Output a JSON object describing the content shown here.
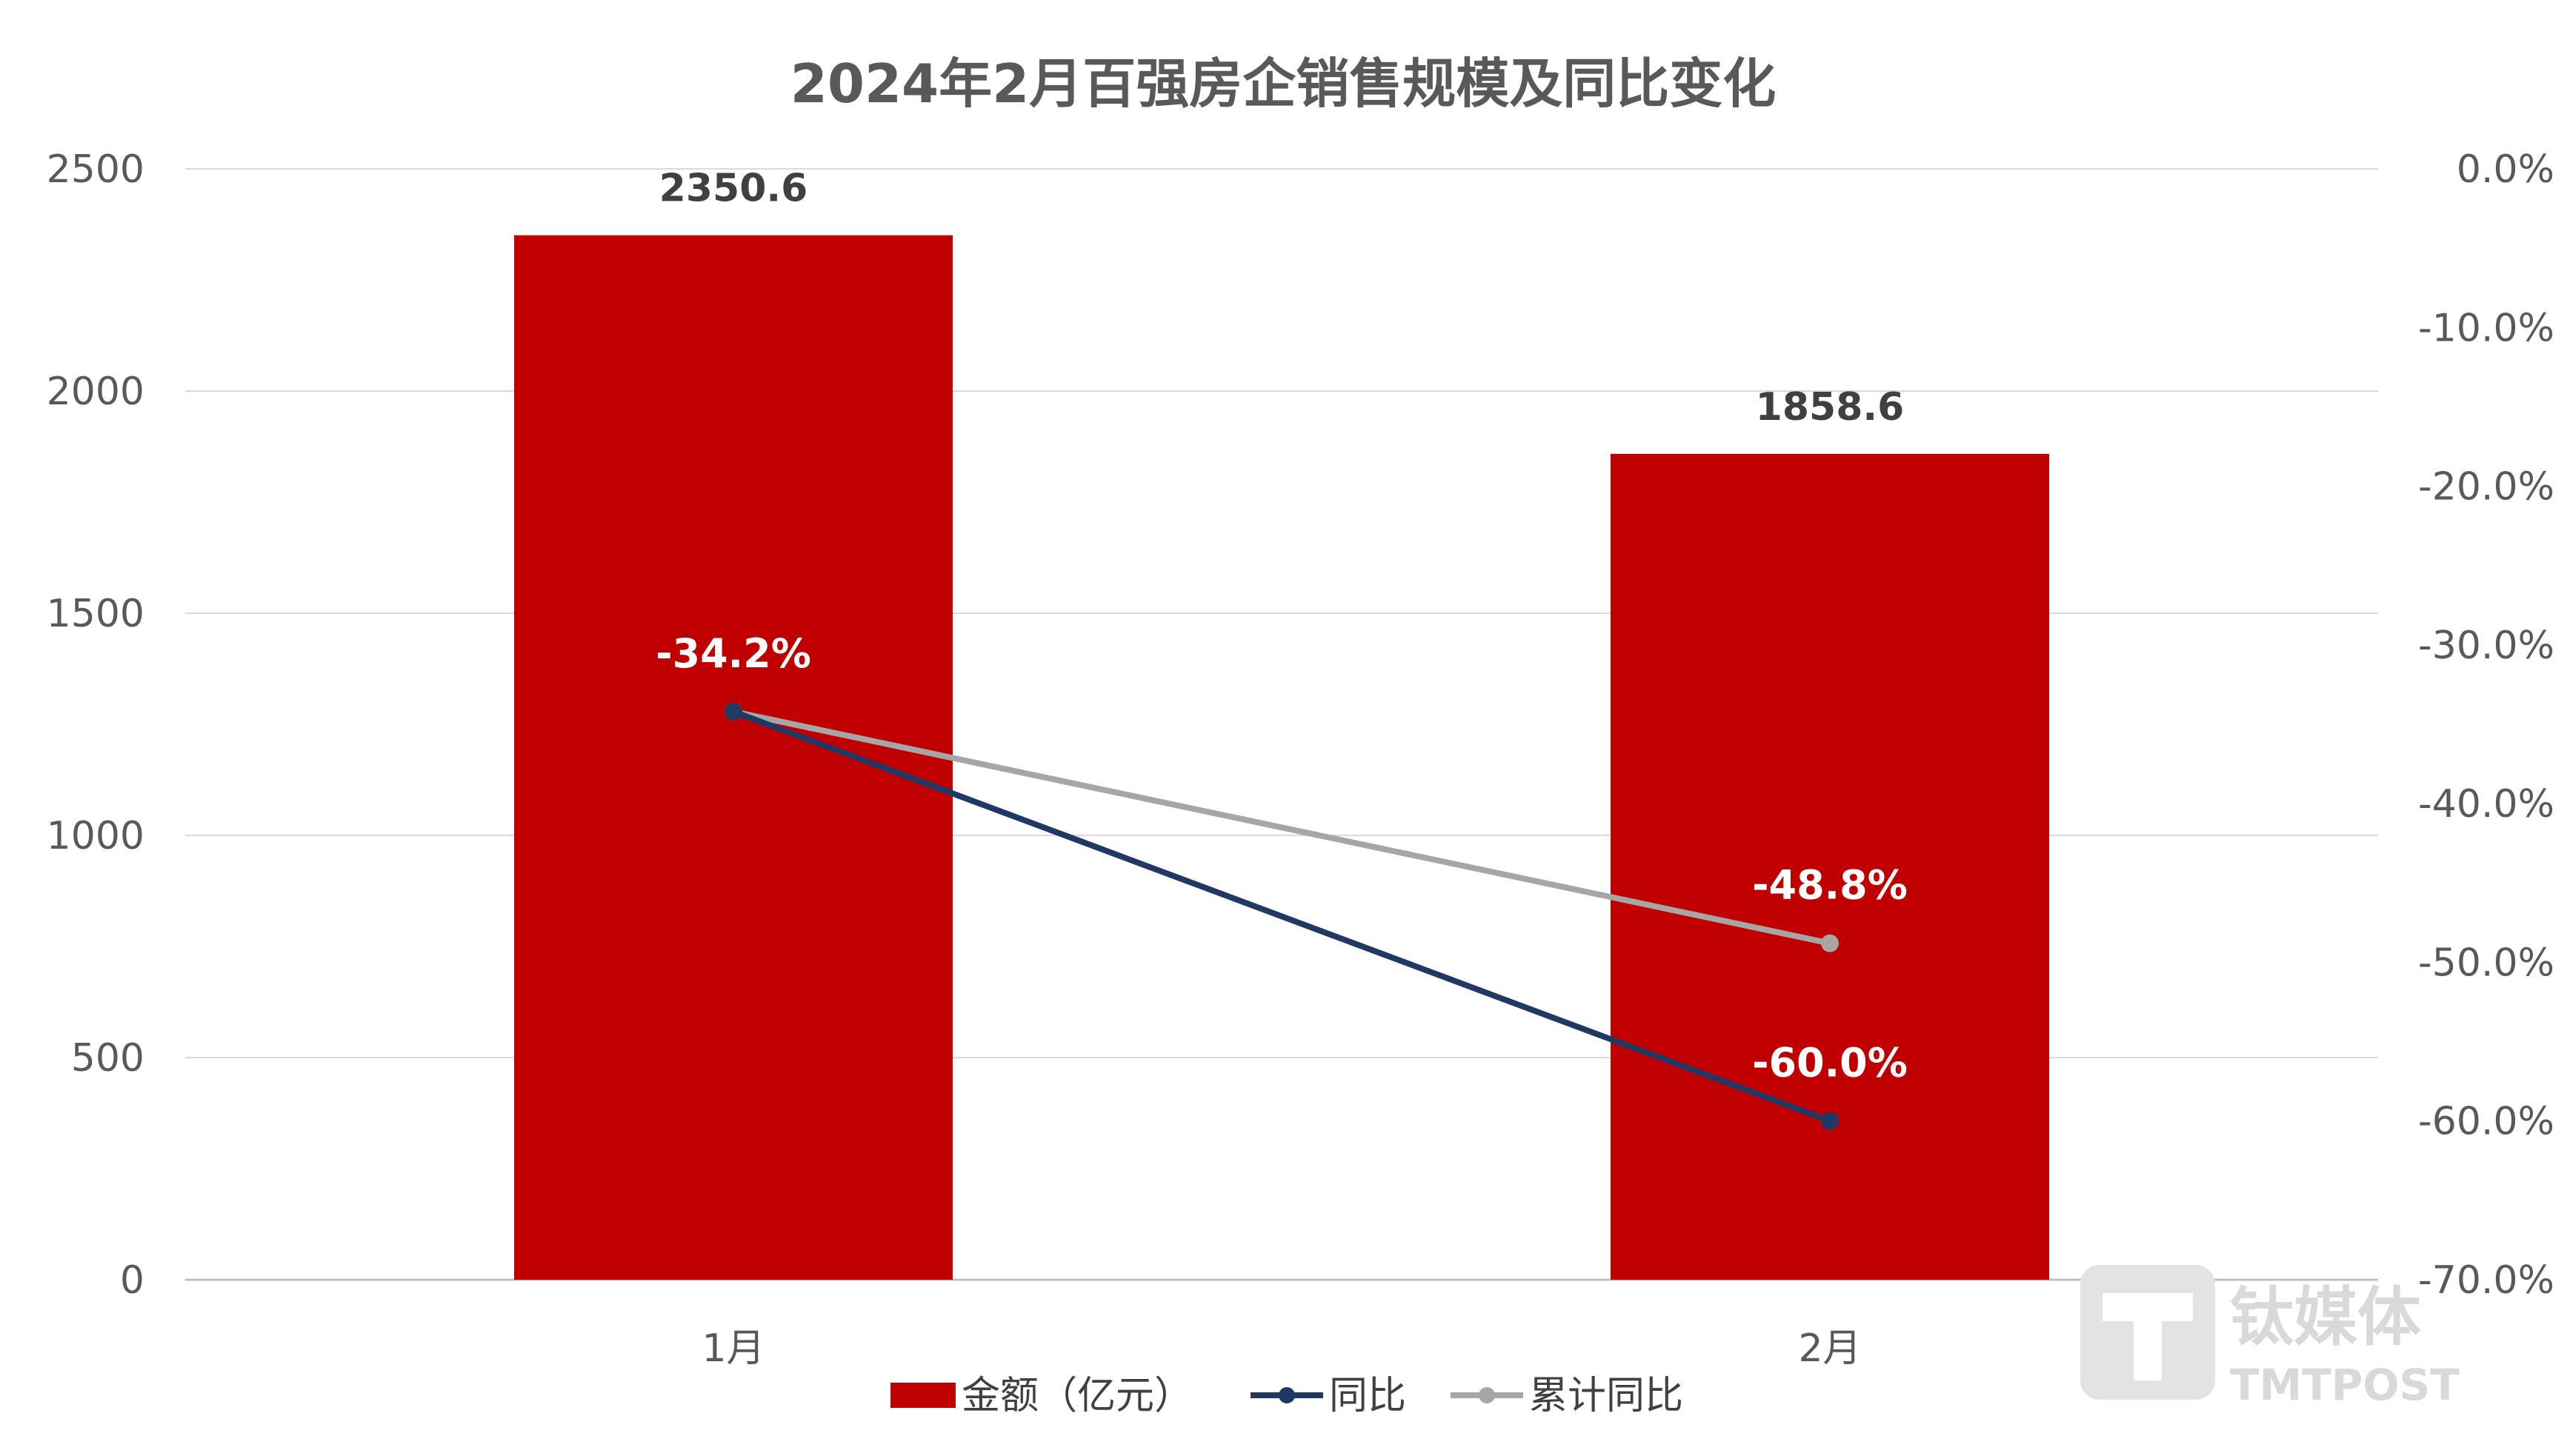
{
  "chart_data": {
    "type": "bar",
    "title": "2024年2月百强房企销售规模及同比变化",
    "categories": [
      "1月",
      "2月"
    ],
    "series": [
      {
        "name": "金额（亿元）",
        "kind": "bar",
        "axis": "left",
        "values": [
          2350.6,
          1858.6
        ],
        "labels": [
          "2350.6",
          "1858.6"
        ],
        "color": "#C00000"
      },
      {
        "name": "同比",
        "kind": "line",
        "axis": "right",
        "values": [
          -34.2,
          -60.0
        ],
        "labels": [
          "-34.2%",
          "-60.0%"
        ],
        "color": "#203864"
      },
      {
        "name": "累计同比",
        "kind": "line",
        "axis": "right",
        "values": [
          -34.2,
          -48.8
        ],
        "labels": [
          "",
          "-48.8%"
        ],
        "color": "#A6A6A6"
      }
    ],
    "y_left": {
      "ylim": [
        0,
        2500
      ],
      "ticks": [
        "0",
        "500",
        "1000",
        "1500",
        "2000",
        "2500"
      ]
    },
    "y_right": {
      "ylim": [
        -70,
        0
      ],
      "ticks": [
        "0.0%",
        "-10.0%",
        "-20.0%",
        "-30.0%",
        "-40.0%",
        "-50.0%",
        "-60.0%",
        "-70.0%"
      ]
    },
    "grid": true,
    "legend_position": "bottom"
  },
  "watermark": {
    "name": "钛媒体",
    "sub": "TMTPOST"
  }
}
